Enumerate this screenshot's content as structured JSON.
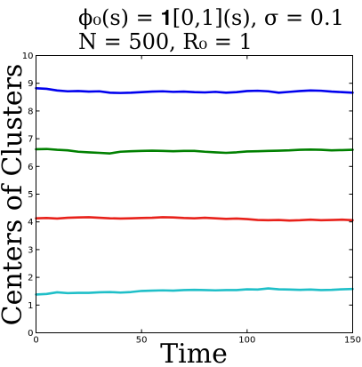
{
  "chart_data": {
    "type": "line",
    "title_lines": [
      "ϕ₀(s) = 𝟏[0,1](s), σ = 0.1",
      "N = 500, R₀ = 1"
    ],
    "xlabel": "Time",
    "ylabel": "Centers of Clusters",
    "xlim": [
      0,
      150
    ],
    "ylim": [
      0,
      10
    ],
    "xticks": [
      0,
      50,
      100,
      150
    ],
    "yticks": [
      0,
      1,
      2,
      3,
      4,
      5,
      6,
      7,
      8,
      9,
      10
    ],
    "grid": false,
    "x": [
      0,
      5,
      10,
      15,
      20,
      25,
      30,
      35,
      40,
      45,
      50,
      55,
      60,
      65,
      70,
      75,
      80,
      85,
      90,
      95,
      100,
      105,
      110,
      115,
      120,
      125,
      130,
      135,
      140,
      145,
      150
    ],
    "series": [
      {
        "color": "#0000ee",
        "values": [
          8.82,
          8.8,
          8.74,
          8.71,
          8.72,
          8.7,
          8.71,
          8.66,
          8.65,
          8.66,
          8.68,
          8.7,
          8.71,
          8.69,
          8.7,
          8.68,
          8.67,
          8.69,
          8.66,
          8.68,
          8.72,
          8.73,
          8.71,
          8.66,
          8.69,
          8.72,
          8.74,
          8.73,
          8.7,
          8.68,
          8.66
        ]
      },
      {
        "color": "#008000",
        "values": [
          6.62,
          6.63,
          6.6,
          6.58,
          6.53,
          6.51,
          6.49,
          6.47,
          6.53,
          6.55,
          6.56,
          6.57,
          6.56,
          6.55,
          6.56,
          6.56,
          6.53,
          6.51,
          6.49,
          6.51,
          6.54,
          6.55,
          6.56,
          6.57,
          6.58,
          6.6,
          6.61,
          6.6,
          6.58,
          6.59,
          6.6
        ]
      },
      {
        "color": "#e8211a",
        "values": [
          4.13,
          4.14,
          4.12,
          4.15,
          4.16,
          4.17,
          4.15,
          4.13,
          4.12,
          4.13,
          4.14,
          4.15,
          4.17,
          4.16,
          4.14,
          4.13,
          4.15,
          4.13,
          4.11,
          4.12,
          4.1,
          4.07,
          4.06,
          4.07,
          4.05,
          4.06,
          4.08,
          4.06,
          4.07,
          4.08,
          4.06
        ]
      },
      {
        "color": "#1fbfc8",
        "values": [
          1.38,
          1.4,
          1.46,
          1.43,
          1.44,
          1.44,
          1.46,
          1.47,
          1.45,
          1.47,
          1.51,
          1.52,
          1.53,
          1.52,
          1.54,
          1.55,
          1.54,
          1.53,
          1.54,
          1.54,
          1.57,
          1.56,
          1.6,
          1.57,
          1.56,
          1.55,
          1.56,
          1.54,
          1.55,
          1.57,
          1.58
        ]
      }
    ]
  }
}
